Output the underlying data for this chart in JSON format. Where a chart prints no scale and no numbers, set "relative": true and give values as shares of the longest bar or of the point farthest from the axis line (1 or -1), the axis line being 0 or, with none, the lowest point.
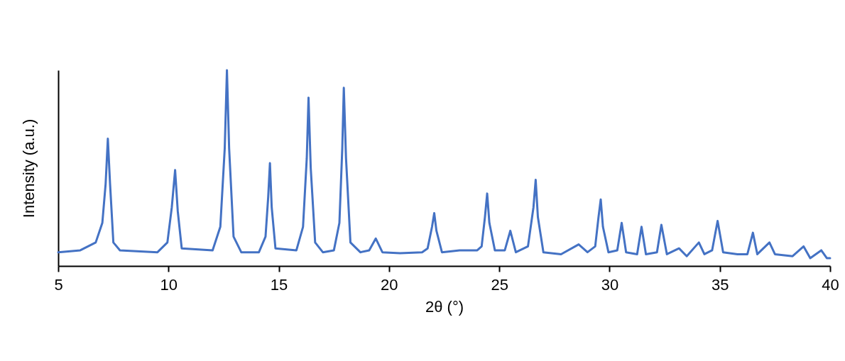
{
  "chart_data": {
    "type": "line",
    "relative": true,
    "xlabel": "2θ (°)",
    "ylabel": "Intensity (a.u.)",
    "xlim": [
      5,
      40
    ],
    "xticks": [
      5,
      10,
      15,
      20,
      25,
      30,
      35,
      40
    ],
    "grid": false,
    "marker": "none",
    "line_style": "solid",
    "series": [
      {
        "color": "#4472c4",
        "x": [
          5.0,
          6.0,
          6.7,
          7.0,
          7.15,
          7.25,
          7.35,
          7.5,
          7.8,
          9.5,
          9.95,
          10.15,
          10.3,
          10.42,
          10.6,
          12.0,
          12.35,
          12.55,
          12.65,
          12.75,
          12.95,
          13.3,
          14.1,
          14.4,
          14.52,
          14.6,
          14.68,
          14.85,
          15.8,
          16.1,
          16.27,
          16.35,
          16.45,
          16.65,
          17.0,
          17.5,
          17.75,
          17.88,
          17.95,
          18.05,
          18.25,
          18.7,
          19.1,
          19.4,
          19.7,
          20.5,
          21.5,
          21.75,
          21.95,
          22.05,
          22.15,
          22.4,
          23.2,
          24.0,
          24.2,
          24.35,
          24.45,
          24.55,
          24.8,
          25.25,
          25.5,
          25.75,
          26.3,
          26.55,
          26.65,
          26.75,
          27.0,
          27.8,
          28.6,
          29.0,
          29.35,
          29.5,
          29.6,
          29.7,
          29.95,
          30.35,
          30.55,
          30.75,
          31.25,
          31.45,
          31.65,
          32.15,
          32.35,
          32.6,
          33.15,
          33.5,
          34.05,
          34.3,
          34.65,
          34.9,
          35.15,
          35.8,
          36.25,
          36.5,
          36.7,
          37.25,
          37.5,
          38.3,
          38.8,
          39.1,
          39.6,
          39.85,
          40.0
        ],
        "values": [
          0.07,
          0.08,
          0.12,
          0.22,
          0.42,
          0.65,
          0.42,
          0.12,
          0.08,
          0.07,
          0.12,
          0.3,
          0.49,
          0.28,
          0.09,
          0.08,
          0.2,
          0.6,
          1,
          0.6,
          0.15,
          0.07,
          0.07,
          0.15,
          0.35,
          0.525,
          0.3,
          0.09,
          0.08,
          0.2,
          0.55,
          0.86,
          0.5,
          0.12,
          0.07,
          0.08,
          0.22,
          0.6,
          0.91,
          0.55,
          0.12,
          0.07,
          0.08,
          0.14,
          0.07,
          0.065,
          0.07,
          0.09,
          0.2,
          0.27,
          0.18,
          0.07,
          0.08,
          0.08,
          0.1,
          0.25,
          0.37,
          0.22,
          0.08,
          0.08,
          0.18,
          0.07,
          0.1,
          0.3,
          0.44,
          0.25,
          0.07,
          0.06,
          0.11,
          0.07,
          0.1,
          0.25,
          0.34,
          0.2,
          0.07,
          0.08,
          0.22,
          0.07,
          0.06,
          0.2,
          0.06,
          0.07,
          0.21,
          0.06,
          0.09,
          0.05,
          0.12,
          0.06,
          0.08,
          0.23,
          0.07,
          0.06,
          0.06,
          0.17,
          0.06,
          0.12,
          0.06,
          0.05,
          0.1,
          0.04,
          0.08,
          0.04,
          0.04
        ]
      }
    ]
  }
}
